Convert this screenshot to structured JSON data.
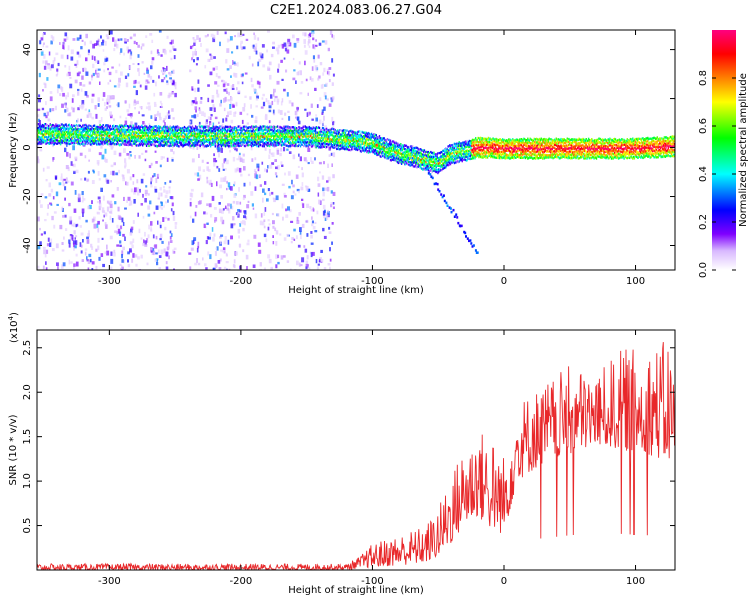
{
  "title": "C2E1.2024.083.06.27.G04",
  "chart_data": [
    {
      "type": "heatmap",
      "xlabel": "Height of straight line (km)",
      "ylabel": "Frequency (Hz)",
      "xlim": [
        -355,
        130
      ],
      "ylim": [
        -50,
        48
      ],
      "xticks": [
        -300,
        -200,
        -100,
        0,
        100
      ],
      "yticks": [
        -40,
        -20,
        0,
        20,
        40
      ],
      "colorbar": {
        "label": "Normalized spectral amplitude",
        "ticks": [
          0.0,
          0.2,
          0.4,
          0.6,
          0.8
        ],
        "range": [
          0,
          1
        ],
        "colormap": [
          "#ffffff",
          "#7f00ff",
          "#0000ff",
          "#00ffff",
          "#00ff00",
          "#ffff00",
          "#ff8000",
          "#ff0000",
          "#ff007f"
        ]
      },
      "ridge": {
        "x": [
          -355,
          -300,
          -250,
          -200,
          -150,
          -130,
          -110,
          -100,
          -90,
          -80,
          -70,
          -60,
          -50,
          -40,
          -30,
          -20,
          0,
          50,
          100,
          130
        ],
        "y": [
          6,
          5.5,
          5,
          5,
          5,
          4,
          3,
          2,
          0,
          -2,
          -3,
          -5,
          -6,
          -2,
          -1,
          0.5,
          0,
          0,
          0,
          1
        ]
      },
      "noise_regions_x": [
        [
          -355,
          -250
        ],
        [
          -240,
          -130
        ]
      ],
      "high_amplitude_x": [
        -25,
        125
      ]
    },
    {
      "type": "line",
      "xlabel": "Height of straight line (km)",
      "ylabel": "SNR (10 * v/v)",
      "scale_label": "(x10",
      "scale_exp": "4",
      "xlim": [
        -355,
        130
      ],
      "ylim": [
        0,
        2.7
      ],
      "xticks": [
        -300,
        -200,
        -100,
        0,
        100
      ],
      "yticks": [
        0.5,
        1.0,
        1.5,
        2.0,
        2.5
      ],
      "series": [
        {
          "color": "#e8282a",
          "envelope": {
            "x": [
              -355,
              -120,
              -110,
              -100,
              -80,
              -60,
              -50,
              -40,
              -30,
              -20,
              -10,
              0,
              10,
              30,
              50,
              70,
              90,
              110,
              125,
              130
            ],
            "low": [
              0.0,
              0.0,
              0.02,
              0.03,
              0.05,
              0.08,
              0.15,
              0.3,
              0.5,
              0.6,
              0.45,
              0.4,
              1.0,
              1.2,
              1.3,
              1.4,
              1.35,
              1.3,
              1.2,
              1.3
            ],
            "high": [
              0.07,
              0.07,
              0.15,
              0.3,
              0.4,
              0.5,
              0.7,
              1.1,
              1.4,
              1.6,
              1.5,
              1.3,
              1.9,
              2.1,
              2.3,
              2.2,
              2.5,
              2.5,
              2.6,
              2.3
            ]
          }
        }
      ]
    }
  ]
}
